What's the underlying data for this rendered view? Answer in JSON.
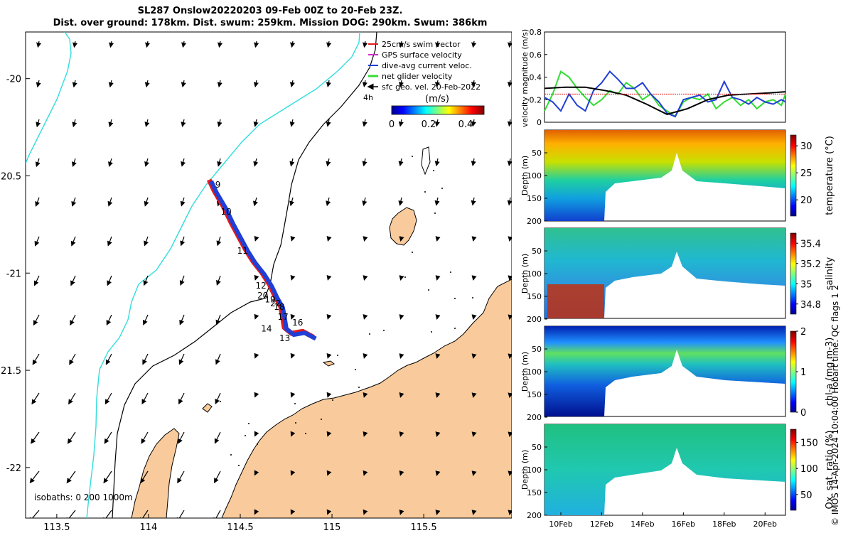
{
  "title": {
    "line1": "SL287 Onslow20220203 09-Feb 00Z to 20-Feb 23Z.",
    "line2": "Dist. over ground: 178km. Dist. swum: 259km. Mission DOG: 290km. Swum: 386km"
  },
  "credit": "© IMOS 14-Apr-2024 10:04:00 Hobart time. QC flags 1  2",
  "colors": {
    "land": "#f9cb9c",
    "swim_vector": "#e41a1c",
    "gps_velocity": "#cc33cc",
    "dive_avg": "#1f3fd6",
    "net_glider": "#33dd33",
    "geo_vel": "#000000",
    "isobath_200": "#000000",
    "isobath_1000": "#33dddd"
  },
  "chart_data": [
    {
      "type": "map",
      "title": "",
      "xlabel": "",
      "ylabel": "",
      "xlim": [
        113.33,
        115.98
      ],
      "ylim": [
        -22.26,
        -19.76
      ],
      "x_ticks": [
        {
          "v": 113.5,
          "label": "113.5"
        },
        {
          "v": 114,
          "label": "114"
        },
        {
          "v": 114.5,
          "label": "114.5"
        },
        {
          "v": 115,
          "label": "115"
        },
        {
          "v": 115.5,
          "label": "115.5"
        }
      ],
      "y_ticks": [
        {
          "v": -20,
          "label": "-20"
        },
        {
          "v": -20.5,
          "label": "20.5"
        },
        {
          "v": -21,
          "label": "-21"
        },
        {
          "v": -21.5,
          "label": "21.5"
        },
        {
          "v": -22,
          "label": "-22"
        }
      ],
      "legend": {
        "position": "top-right",
        "entries": [
          "25cm/s swim vector",
          "GPS surface velocity",
          "dive-avg current veloc.",
          "net glider velocity",
          "sfc geo. vel. 20-Feb-2022"
        ],
        "time_note": "4h"
      },
      "colorbar": {
        "label": "(m/s)",
        "ticks": [
          "0",
          "0.2",
          "0.4"
        ],
        "range": [
          0,
          0.5
        ]
      },
      "isobath_note": "isobaths: 0   200  1000m",
      "track": [
        [
          114.33,
          -20.52
        ],
        [
          114.36,
          -20.58
        ],
        [
          114.41,
          -20.66
        ],
        [
          114.45,
          -20.74
        ],
        [
          114.49,
          -20.81
        ],
        [
          114.53,
          -20.88
        ],
        [
          114.57,
          -20.94
        ],
        [
          114.62,
          -21.0
        ],
        [
          114.66,
          -21.06
        ],
        [
          114.69,
          -21.12
        ],
        [
          114.72,
          -21.17
        ],
        [
          114.73,
          -21.22
        ],
        [
          114.74,
          -21.28
        ],
        [
          114.78,
          -21.31
        ],
        [
          114.84,
          -21.3
        ],
        [
          114.9,
          -21.33
        ]
      ],
      "day_labels": [
        {
          "t": "9",
          "lon": 114.34,
          "lat": -20.56
        },
        {
          "t": "10",
          "lon": 114.37,
          "lat": -20.7
        },
        {
          "t": "11",
          "lon": 114.46,
          "lat": -20.9
        },
        {
          "t": "12",
          "lon": 114.56,
          "lat": -21.08
        },
        {
          "t": "20",
          "lon": 114.57,
          "lat": -21.13
        },
        {
          "t": "19",
          "lon": 114.61,
          "lat": -21.15
        },
        {
          "t": "22",
          "lon": 114.64,
          "lat": -21.17
        },
        {
          "t": "18",
          "lon": 114.66,
          "lat": -21.19
        },
        {
          "t": "17",
          "lon": 114.68,
          "lat": -21.24
        },
        {
          "t": "16",
          "lon": 114.76,
          "lat": -21.27
        },
        {
          "t": "14",
          "lon": 114.59,
          "lat": -21.3
        },
        {
          "t": "13",
          "lon": 114.69,
          "lat": -21.35
        }
      ]
    },
    {
      "type": "line",
      "title": "",
      "xlabel": "",
      "ylabel": "velocity magnitude (m/s)",
      "xlim": [
        0,
        11.8
      ],
      "ylim": [
        0,
        0.8
      ],
      "y_ticks": [
        "0",
        "0.2",
        "0.4",
        "0.6",
        "0.8"
      ],
      "series": [
        {
          "name": "net glider velocity",
          "color": "#33dd33",
          "x": [
            0,
            0.4,
            0.8,
            1.2,
            1.6,
            2.0,
            2.4,
            2.8,
            3.2,
            3.6,
            4.0,
            4.4,
            4.8,
            5.2,
            5.6,
            6.0,
            6.4,
            6.8,
            7.2,
            7.6,
            8.0,
            8.4,
            8.8,
            9.2,
            9.6,
            10.0,
            10.4,
            10.8,
            11.2,
            11.6,
            11.8
          ],
          "values": [
            0.1,
            0.25,
            0.45,
            0.4,
            0.3,
            0.22,
            0.15,
            0.2,
            0.28,
            0.25,
            0.35,
            0.3,
            0.2,
            0.25,
            0.15,
            0.1,
            0.05,
            0.18,
            0.22,
            0.2,
            0.25,
            0.12,
            0.18,
            0.22,
            0.15,
            0.2,
            0.12,
            0.18,
            0.2,
            0.15,
            0.25
          ]
        },
        {
          "name": "dive-avg current veloc.",
          "color": "#1f3fd6",
          "x": [
            0,
            0.4,
            0.8,
            1.2,
            1.6,
            2.0,
            2.4,
            2.8,
            3.2,
            3.6,
            4.0,
            4.4,
            4.8,
            5.2,
            5.6,
            6.0,
            6.4,
            6.8,
            7.2,
            7.6,
            8.0,
            8.4,
            8.8,
            9.2,
            9.6,
            10.0,
            10.4,
            10.8,
            11.2,
            11.6,
            11.8
          ],
          "values": [
            0.22,
            0.18,
            0.1,
            0.25,
            0.15,
            0.1,
            0.28,
            0.35,
            0.45,
            0.38,
            0.3,
            0.3,
            0.35,
            0.25,
            0.18,
            0.08,
            0.05,
            0.2,
            0.22,
            0.24,
            0.18,
            0.2,
            0.36,
            0.22,
            0.2,
            0.16,
            0.22,
            0.18,
            0.16,
            0.2,
            0.18
          ]
        },
        {
          "name": "sfc geo. vel.",
          "color": "#000000",
          "x": [
            0,
            1,
            2,
            3,
            4,
            5,
            6,
            7,
            8,
            9,
            10,
            11,
            11.8
          ],
          "values": [
            0.3,
            0.31,
            0.31,
            0.28,
            0.24,
            0.16,
            0.07,
            0.12,
            0.2,
            0.24,
            0.25,
            0.26,
            0.27
          ]
        },
        {
          "name": "swim",
          "color": "#e41a1c",
          "x": [
            0,
            11.8
          ],
          "values": [
            0.25,
            0.25
          ]
        }
      ]
    },
    {
      "type": "heatmap",
      "name": "temperature",
      "xlabel": "",
      "ylabel": "Depth (m)",
      "ylim": [
        200,
        0
      ],
      "y_ticks": [
        "50",
        "100",
        "150",
        "200"
      ],
      "colorbar_label": "temperature (°C)",
      "colorbar_ticks": [
        "20",
        "25",
        "30"
      ],
      "clim": [
        17,
        32
      ]
    },
    {
      "type": "heatmap",
      "name": "salinity",
      "xlabel": "",
      "ylabel": "Depth (m)",
      "ylim": [
        200,
        0
      ],
      "y_ticks": [
        "50",
        "100",
        "150",
        "200"
      ],
      "colorbar_label": "salinity",
      "colorbar_ticks": [
        "34.8",
        "35",
        "35.2",
        "35.4"
      ],
      "clim": [
        34.7,
        35.5
      ]
    },
    {
      "type": "heatmap",
      "name": "chl-a",
      "xlabel": "",
      "ylabel": "Depth (m)",
      "ylim": [
        200,
        0
      ],
      "y_ticks": [
        "50",
        "100",
        "150",
        "200"
      ],
      "colorbar_label": "chl-a (mg m-3)",
      "colorbar_ticks": [
        "0",
        "1",
        "2"
      ],
      "clim": [
        0,
        2
      ]
    },
    {
      "type": "heatmap",
      "name": "oxygen",
      "ylabel": "Depth (m)",
      "ylim": [
        200,
        0
      ],
      "y_ticks": [
        "50",
        "100",
        "150",
        "200"
      ],
      "colorbar_label": "Ox. sat. ratio (%)",
      "colorbar_ticks": [
        "50",
        "100",
        "150"
      ],
      "clim": [
        20,
        175
      ],
      "x_ticks": [
        "10Feb",
        "12Feb",
        "14Feb",
        "16Feb",
        "18Feb",
        "20Feb"
      ]
    }
  ]
}
